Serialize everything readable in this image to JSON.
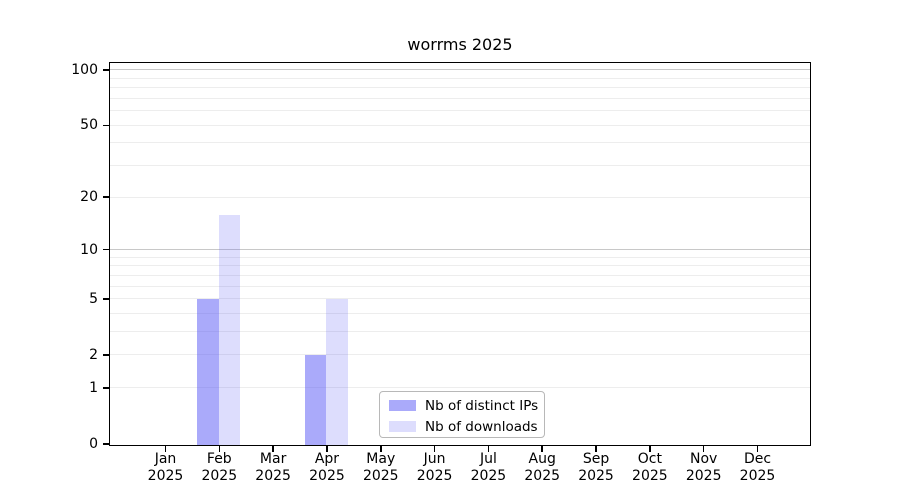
{
  "title": "worrms 2025",
  "chart_data": {
    "type": "bar",
    "title": "worrms 2025",
    "categories": [
      "Jan",
      "Feb",
      "Mar",
      "Apr",
      "May",
      "Jun",
      "Jul",
      "Aug",
      "Sep",
      "Oct",
      "Nov",
      "Dec"
    ],
    "category_year": "2025",
    "series": [
      {
        "name": "Nb of distinct IPs",
        "color": "#5555F580",
        "values": [
          0,
          5,
          0,
          2,
          0,
          0,
          0,
          0,
          0,
          0,
          0,
          0
        ]
      },
      {
        "name": "Nb of downloads",
        "color": "#5555F533",
        "values": [
          0,
          16,
          0,
          5,
          0,
          0,
          0,
          0,
          0,
          0,
          0,
          0
        ]
      }
    ],
    "y_axis": {
      "scale": "log10(1+v)",
      "ticks": [
        0,
        1,
        2,
        5,
        10,
        20,
        50,
        100
      ],
      "max": 109,
      "minor_gridlines": [
        1,
        2,
        3,
        4,
        5,
        6,
        7,
        8,
        9,
        20,
        30,
        40,
        50,
        60,
        70,
        80,
        90
      ],
      "major_gridlines": [
        10,
        100
      ]
    },
    "legend": {
      "position": "bottom-center",
      "entries": [
        "Nb of distinct IPs",
        "Nb of downloads"
      ]
    },
    "colors": {
      "grid_major": "#C8C8C8",
      "grid_minor": "#EDEDED",
      "axis": "#000000",
      "background": "#FFFFFF"
    }
  }
}
